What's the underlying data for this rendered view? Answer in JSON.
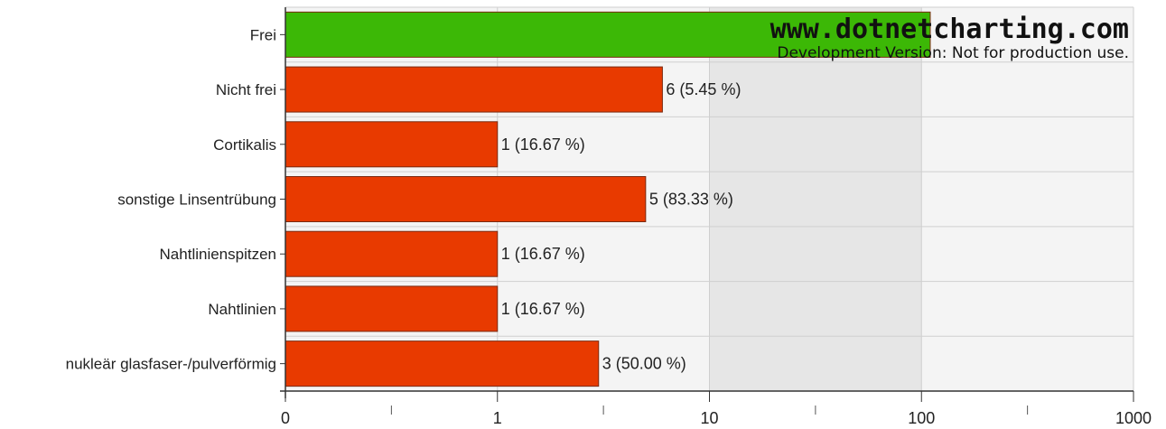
{
  "chart_data": {
    "type": "bar",
    "orientation": "horizontal",
    "x_scale": "log",
    "xlim": [
      0,
      1000
    ],
    "x_ticks": [
      "0",
      "1",
      "10",
      "100",
      "1000"
    ],
    "grid": true,
    "categories": [
      "Frei",
      "Nicht frei",
      "Cortikalis",
      "sonstige Linsentrübung",
      "Nahtlinienspitzen",
      "Nahtlinien",
      "nukleär glasfaser-/pulverförmig"
    ],
    "values": [
      110,
      6,
      1,
      5,
      1,
      1,
      3
    ],
    "data_labels": [
      "",
      "6 (5.45 %)",
      "1 (16.67 %)",
      "5 (83.33 %)",
      "1 (16.67 %)",
      "1 (16.67 %)",
      "3 (50.00 %)"
    ],
    "colors": [
      "#3cb806",
      "#e83a00",
      "#e83a00",
      "#e83a00",
      "#e83a00",
      "#e83a00",
      "#e83a00"
    ],
    "xlabel": "",
    "ylabel": ""
  },
  "watermark": {
    "title": "www.dotnetcharting.com",
    "subtitle": "Development Version: Not for production use."
  }
}
